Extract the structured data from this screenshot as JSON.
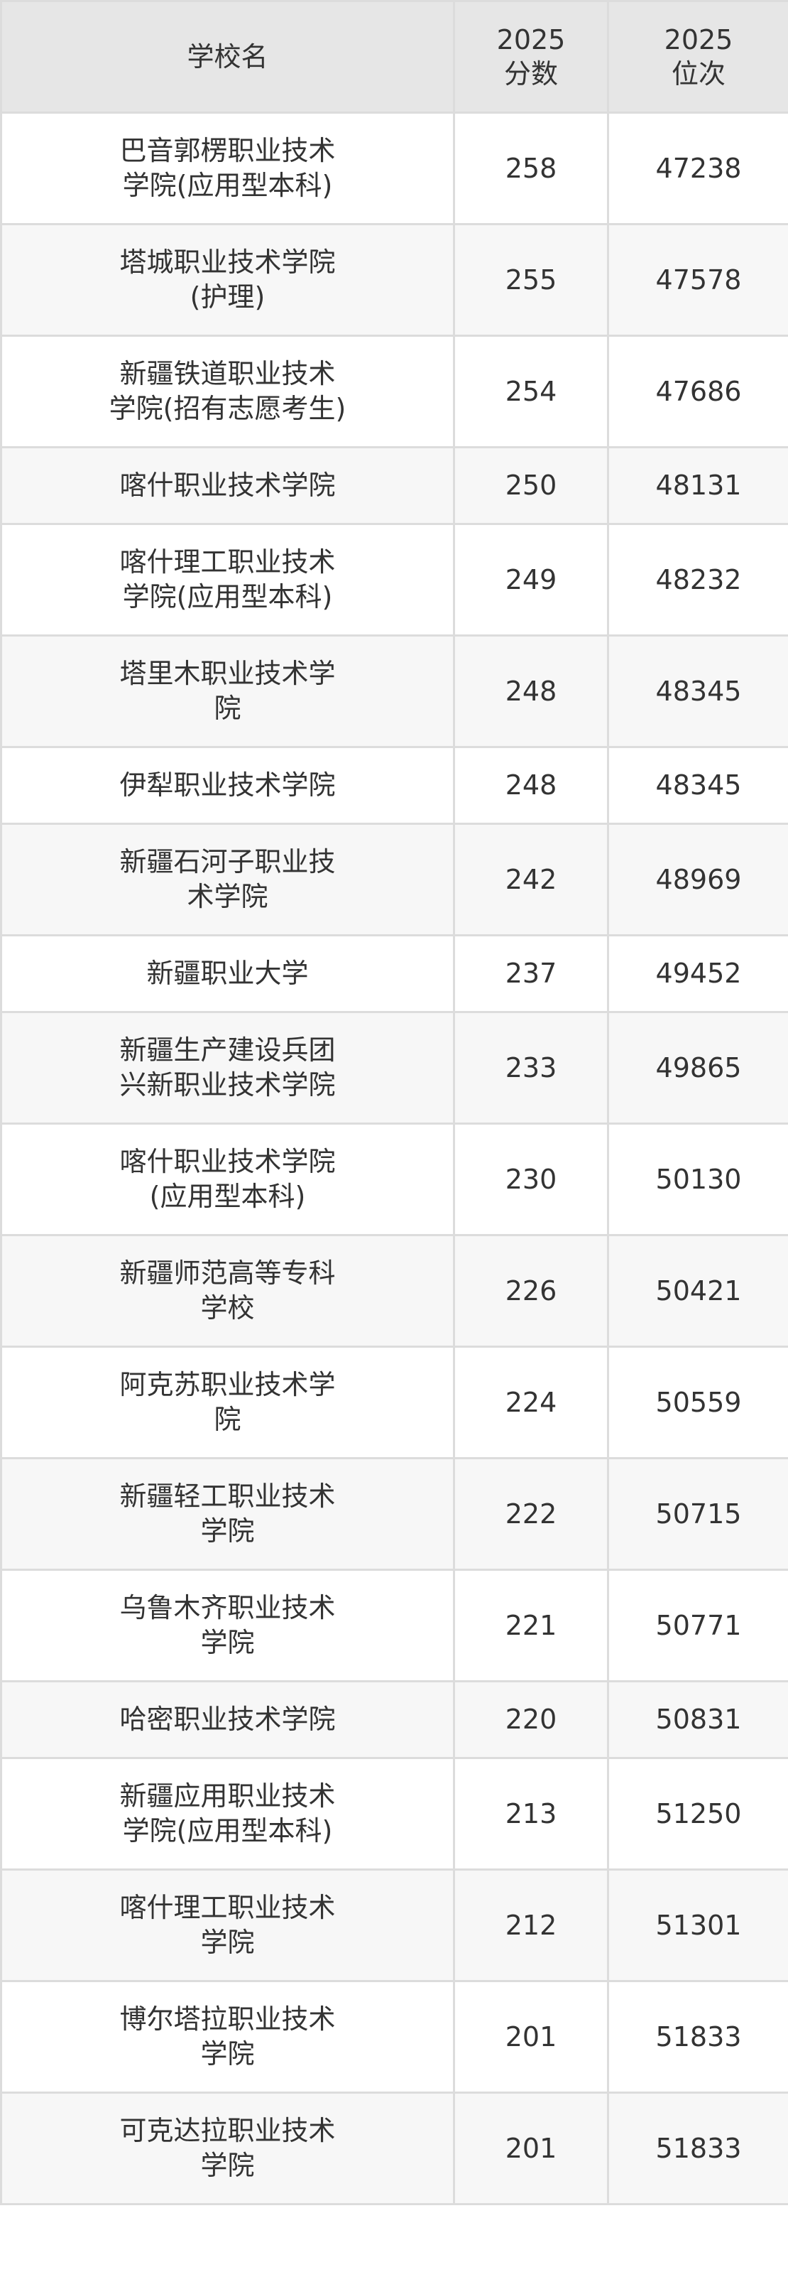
{
  "table": {
    "headers": {
      "school": "学校名",
      "score_year": "2025",
      "score_label": "分数",
      "rank_year": "2025",
      "rank_label": "位次"
    },
    "rows": [
      {
        "name": "巴音郭楞职业技术学院(应用型本科)",
        "score": "258",
        "rank": "47238"
      },
      {
        "name": "塔城职业技术学院(护理)",
        "score": "255",
        "rank": "47578"
      },
      {
        "name": "新疆铁道职业技术学院(招有志愿考生)",
        "score": "254",
        "rank": "47686"
      },
      {
        "name": "喀什职业技术学院",
        "score": "250",
        "rank": "48131"
      },
      {
        "name": "喀什理工职业技术学院(应用型本科)",
        "score": "249",
        "rank": "48232"
      },
      {
        "name": "塔里木职业技术学院",
        "score": "248",
        "rank": "48345"
      },
      {
        "name": "伊犁职业技术学院",
        "score": "248",
        "rank": "48345"
      },
      {
        "name": "新疆石河子职业技术学院",
        "score": "242",
        "rank": "48969"
      },
      {
        "name": "新疆职业大学",
        "score": "237",
        "rank": "49452"
      },
      {
        "name": "新疆生产建设兵团兴新职业技术学院",
        "score": "233",
        "rank": "49865"
      },
      {
        "name": "喀什职业技术学院(应用型本科)",
        "score": "230",
        "rank": "50130"
      },
      {
        "name": "新疆师范高等专科学校",
        "score": "226",
        "rank": "50421"
      },
      {
        "name": "阿克苏职业技术学院",
        "score": "224",
        "rank": "50559"
      },
      {
        "name": "新疆轻工职业技术学院",
        "score": "222",
        "rank": "50715"
      },
      {
        "name": "乌鲁木齐职业技术学院",
        "score": "221",
        "rank": "50771"
      },
      {
        "name": "哈密职业技术学院",
        "score": "220",
        "rank": "50831"
      },
      {
        "name": "新疆应用职业技术学院(应用型本科)",
        "score": "213",
        "rank": "51250"
      },
      {
        "name": "喀什理工职业技术学院",
        "score": "212",
        "rank": "51301"
      },
      {
        "name": "博尔塔拉职业技术学院",
        "score": "201",
        "rank": "51833"
      },
      {
        "name": "可克达拉职业技术学院",
        "score": "201",
        "rank": "51833"
      }
    ]
  }
}
